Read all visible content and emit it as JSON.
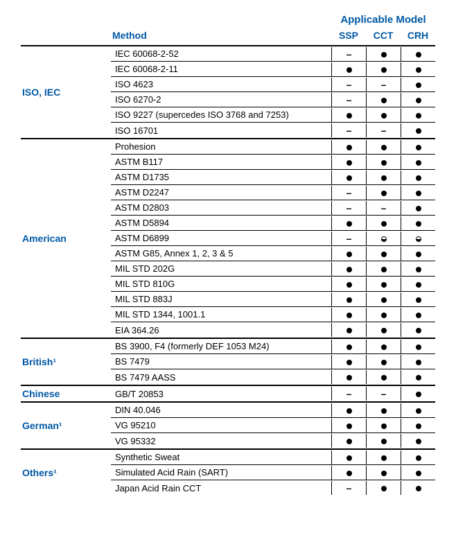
{
  "header": {
    "applicable": "Applicable Model",
    "method": "Method",
    "cols": [
      "SSP",
      "CCT",
      "CRH"
    ]
  },
  "groups": [
    {
      "category": "ISO, IEC",
      "rows": [
        {
          "method": "IEC 60068-2-52",
          "marks": [
            "dash",
            "dot",
            "dot"
          ]
        },
        {
          "method": "IEC 60068-2-11",
          "marks": [
            "dot",
            "dot",
            "dot"
          ]
        },
        {
          "method": "ISO 4623",
          "marks": [
            "dash",
            "dash",
            "dot"
          ]
        },
        {
          "method": "ISO 6270-2",
          "marks": [
            "dash",
            "dot",
            "dot"
          ]
        },
        {
          "method": "ISO 9227 (supercedes ISO 3768 and 7253)",
          "marks": [
            "dot",
            "dot",
            "dot"
          ]
        },
        {
          "method": "ISO 16701",
          "marks": [
            "dash",
            "dash",
            "dot"
          ]
        }
      ]
    },
    {
      "category": "American",
      "rows": [
        {
          "method": "Prohesion",
          "marks": [
            "dot",
            "dot",
            "dot"
          ]
        },
        {
          "method": "ASTM B117",
          "marks": [
            "dot",
            "dot",
            "dot"
          ]
        },
        {
          "method": "ASTM D1735",
          "marks": [
            "dot",
            "dot",
            "dot"
          ]
        },
        {
          "method": "ASTM D2247",
          "marks": [
            "dash",
            "dot",
            "dot"
          ]
        },
        {
          "method": "ASTM D2803",
          "marks": [
            "dash",
            "dash",
            "dot"
          ]
        },
        {
          "method": "ASTM D5894",
          "marks": [
            "dot",
            "dot",
            "dot"
          ]
        },
        {
          "method": "ASTM D6899",
          "marks": [
            "dash",
            "half",
            "half"
          ]
        },
        {
          "method": "ASTM G85, Annex 1, 2, 3 & 5",
          "marks": [
            "dot",
            "dot",
            "dot"
          ]
        },
        {
          "method": "MIL STD 202G",
          "marks": [
            "dot",
            "dot",
            "dot"
          ]
        },
        {
          "method": "MIL STD 810G",
          "marks": [
            "dot",
            "dot",
            "dot"
          ]
        },
        {
          "method": "MIL STD 883J",
          "marks": [
            "dot",
            "dot",
            "dot"
          ]
        },
        {
          "method": "MIL STD 1344, 1001.1",
          "marks": [
            "dot",
            "dot",
            "dot"
          ]
        },
        {
          "method": "EIA 364.26",
          "marks": [
            "dot",
            "dot",
            "dot"
          ]
        }
      ]
    },
    {
      "category": "British¹",
      "rows": [
        {
          "method": "BS 3900, F4 (formerly DEF 1053 M24)",
          "marks": [
            "dot",
            "dot",
            "dot"
          ]
        },
        {
          "method": "BS 7479",
          "marks": [
            "dot",
            "dot",
            "dot"
          ]
        },
        {
          "method": "BS 7479 AASS",
          "marks": [
            "dot",
            "dot",
            "dot"
          ]
        }
      ]
    },
    {
      "category": "Chinese",
      "rows": [
        {
          "method": "GB/T 20853",
          "marks": [
            "dash",
            "dash",
            "dot"
          ]
        }
      ]
    },
    {
      "category": "German¹",
      "rows": [
        {
          "method": "DIN 40.046",
          "marks": [
            "dot",
            "dot",
            "dot"
          ]
        },
        {
          "method": "VG 95210",
          "marks": [
            "dot",
            "dot",
            "dot"
          ]
        },
        {
          "method": "VG 95332",
          "marks": [
            "dot",
            "dot",
            "dot"
          ]
        }
      ]
    },
    {
      "category": "Others¹",
      "rows": [
        {
          "method": "Synthetic Sweat",
          "marks": [
            "dot",
            "dot",
            "dot"
          ]
        },
        {
          "method": "Simulated Acid Rain (SART)",
          "marks": [
            "dot",
            "dot",
            "dot"
          ]
        },
        {
          "method": "Japan Acid Rain CCT",
          "marks": [
            "dash",
            "dot",
            "dot"
          ]
        }
      ]
    }
  ]
}
